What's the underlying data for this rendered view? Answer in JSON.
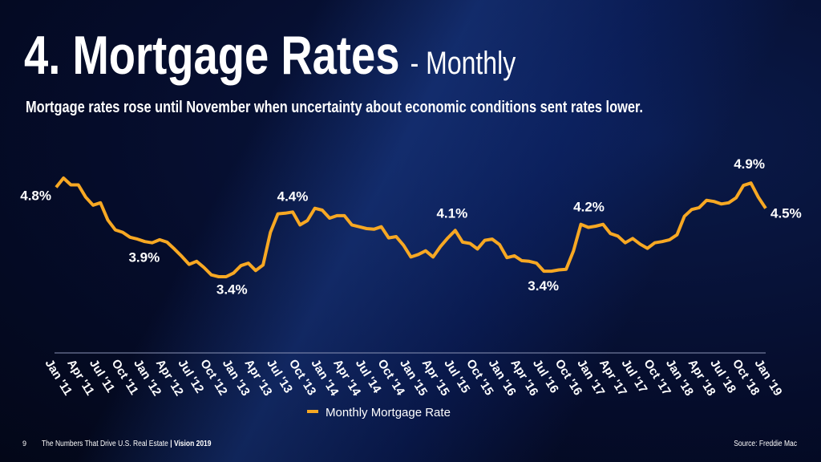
{
  "chart_data": {
    "type": "line",
    "title": "4. Mortgage Rates",
    "subtitle": "- Monthly",
    "description": "Mortgage rates rose until November when uncertainty about economic conditions sent rates lower.",
    "categories": [
      "Jan '11",
      null,
      null,
      "Apr '11",
      null,
      null,
      "Jul '11",
      null,
      null,
      "Oct '11",
      null,
      null,
      "Jan '12",
      null,
      null,
      "Apr '12",
      null,
      null,
      "Jul '12",
      null,
      null,
      "Oct '12",
      null,
      null,
      "Jan '13",
      null,
      null,
      "Apr '13",
      null,
      null,
      "Jul '13",
      null,
      null,
      "Oct '13",
      null,
      null,
      "Jan '14",
      null,
      null,
      "Apr '14",
      null,
      null,
      "Jul '14",
      null,
      null,
      "Oct '14",
      null,
      null,
      "Jan '15",
      null,
      null,
      "Apr '15",
      null,
      null,
      "Jul '15",
      null,
      null,
      "Oct '15",
      null,
      null,
      "Jan '16",
      null,
      null,
      "Apr '16",
      null,
      null,
      "Jul '16",
      null,
      null,
      "Oct '16",
      null,
      null,
      "Jan '17",
      null,
      null,
      "Apr '17",
      null,
      null,
      "Jul '17",
      null,
      null,
      "Oct '17",
      null,
      null,
      "Jan '18",
      null,
      null,
      "Apr '18",
      null,
      null,
      "Jul '18",
      null,
      null,
      "Oct '18",
      null,
      null,
      "Jan '19"
    ],
    "series": [
      {
        "name": "Monthly Mortgage Rate",
        "color": "#f7a823",
        "values": [
          4.8,
          4.95,
          4.84,
          4.84,
          4.64,
          4.51,
          4.55,
          4.27,
          4.11,
          4.07,
          3.99,
          3.96,
          3.92,
          3.9,
          3.95,
          3.91,
          3.8,
          3.68,
          3.55,
          3.6,
          3.5,
          3.38,
          3.35,
          3.35,
          3.41,
          3.53,
          3.57,
          3.45,
          3.54,
          4.07,
          4.37,
          4.38,
          4.4,
          4.19,
          4.26,
          4.46,
          4.43,
          4.3,
          4.34,
          4.34,
          4.19,
          4.16,
          4.13,
          4.12,
          4.16,
          3.98,
          4.0,
          3.86,
          3.67,
          3.71,
          3.77,
          3.67,
          3.84,
          3.98,
          4.1,
          3.91,
          3.89,
          3.8,
          3.94,
          3.96,
          3.87,
          3.66,
          3.69,
          3.61,
          3.6,
          3.57,
          3.44,
          3.44,
          3.46,
          3.47,
          3.77,
          4.2,
          4.15,
          4.17,
          4.2,
          4.05,
          4.01,
          3.9,
          3.97,
          3.88,
          3.81,
          3.9,
          3.92,
          3.95,
          4.03,
          4.33,
          4.44,
          4.47,
          4.59,
          4.57,
          4.53,
          4.55,
          4.63,
          4.83,
          4.87,
          4.64,
          4.46
        ],
        "value_labels": [
          "4.8%",
          null,
          null,
          null,
          null,
          null,
          null,
          null,
          null,
          null,
          null,
          null,
          null,
          "3.9%",
          null,
          null,
          null,
          null,
          null,
          null,
          null,
          null,
          null,
          null,
          "3.4%",
          null,
          null,
          null,
          null,
          null,
          null,
          null,
          "4.4%",
          null,
          null,
          null,
          null,
          null,
          null,
          null,
          null,
          null,
          null,
          null,
          null,
          null,
          null,
          null,
          null,
          null,
          null,
          null,
          null,
          null,
          "4.1%",
          null,
          null,
          null,
          null,
          null,
          null,
          null,
          null,
          null,
          null,
          null,
          null,
          "3.4%",
          null,
          null,
          null,
          "4.2%",
          null,
          null,
          null,
          null,
          null,
          null,
          null,
          null,
          null,
          null,
          null,
          null,
          null,
          null,
          null,
          null,
          null,
          null,
          null,
          null,
          null,
          null,
          "4.9%",
          null,
          "4.5%"
        ]
      }
    ],
    "legend": "bottom"
  },
  "footer": {
    "page": "9",
    "text": "The Numbers That Drive U.S. Real Estate ",
    "brand": "| Vision 2019",
    "source": "Source: Freddie Mac"
  }
}
